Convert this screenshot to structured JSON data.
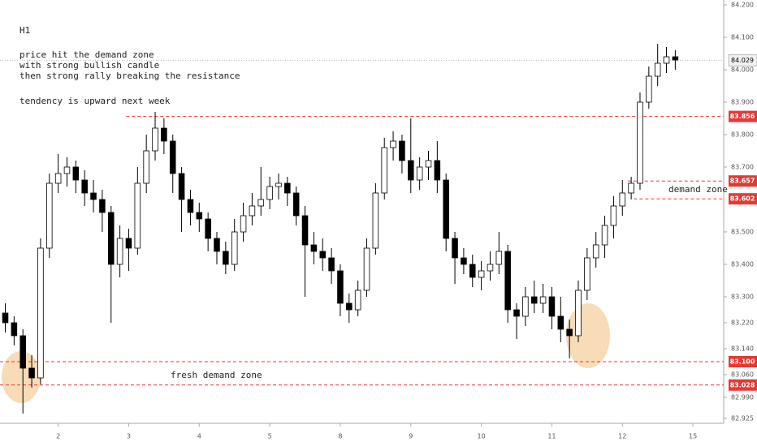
{
  "chart_data": {
    "type": "candlestick",
    "notes": [
      "H1",
      "price hit the demand zone",
      "with strong bullish candle",
      "then strong rally breaking the resistance",
      "tendency is upward next week"
    ],
    "zone_labels": [
      "fresh demand zone",
      "demand zone"
    ],
    "x": [
      -6,
      -5,
      -4,
      -3,
      -2,
      -1,
      0,
      1,
      2,
      3,
      4,
      5,
      6,
      7,
      8,
      9,
      10,
      11,
      12,
      13,
      14,
      15,
      16,
      17,
      18,
      19,
      20,
      21,
      22,
      23,
      24,
      25,
      26,
      27,
      28,
      29,
      30,
      31,
      32,
      33,
      34,
      35,
      36,
      37,
      38,
      39,
      40,
      41,
      42,
      43,
      44,
      45,
      46,
      47,
      48,
      49,
      50,
      51,
      52,
      53,
      54,
      55,
      56,
      57,
      58,
      59,
      60,
      61,
      62,
      63,
      64,
      65,
      66,
      67,
      68,
      69,
      70
    ],
    "open": [
      83.25,
      83.22,
      83.18,
      83.08,
      83.05,
      83.45,
      83.65,
      83.68,
      83.7,
      83.66,
      83.62,
      83.6,
      83.56,
      83.4,
      83.48,
      83.45,
      83.65,
      83.75,
      83.82,
      83.78,
      83.68,
      83.6,
      83.56,
      83.54,
      83.48,
      83.44,
      83.4,
      83.5,
      83.55,
      83.58,
      83.6,
      83.64,
      83.65,
      83.62,
      83.55,
      83.46,
      83.44,
      83.42,
      83.38,
      83.28,
      83.26,
      83.32,
      83.45,
      83.62,
      83.76,
      83.78,
      83.72,
      83.66,
      83.7,
      83.72,
      83.66,
      83.48,
      83.42,
      83.4,
      83.36,
      83.38,
      83.4,
      83.44,
      83.26,
      83.24,
      83.3,
      83.28,
      83.3,
      83.24,
      83.2,
      83.18,
      83.32,
      83.42,
      83.46,
      83.52,
      83.58,
      83.62,
      83.65,
      83.9,
      83.98,
      84.02,
      84.04
    ],
    "high": [
      83.28,
      83.24,
      83.2,
      83.12,
      83.48,
      83.68,
      83.74,
      83.73,
      83.72,
      83.69,
      83.66,
      83.63,
      83.58,
      83.52,
      83.51,
      83.7,
      83.8,
      83.87,
      83.85,
      83.8,
      83.7,
      83.63,
      83.59,
      83.56,
      83.5,
      83.47,
      83.54,
      83.59,
      83.62,
      83.7,
      83.67,
      83.68,
      83.67,
      83.64,
      83.58,
      83.5,
      83.48,
      83.45,
      83.4,
      83.31,
      83.35,
      83.48,
      83.65,
      83.79,
      83.81,
      83.8,
      83.85,
      83.73,
      83.75,
      83.78,
      83.68,
      83.5,
      83.45,
      83.43,
      83.41,
      83.44,
      83.5,
      83.46,
      83.28,
      83.33,
      83.35,
      83.34,
      83.33,
      83.3,
      83.23,
      83.35,
      83.45,
      83.5,
      83.55,
      83.61,
      83.66,
      83.67,
      83.93,
      84.01,
      84.08,
      84.07,
      84.06
    ],
    "low": [
      83.19,
      83.15,
      82.94,
      83.02,
      83.03,
      83.42,
      83.62,
      83.64,
      83.62,
      83.58,
      83.56,
      83.5,
      83.22,
      83.36,
      83.38,
      83.43,
      83.62,
      83.72,
      83.74,
      83.62,
      83.5,
      83.52,
      83.5,
      83.44,
      83.4,
      83.37,
      83.38,
      83.47,
      83.52,
      83.55,
      83.57,
      83.6,
      83.58,
      83.52,
      83.3,
      83.4,
      83.38,
      83.34,
      83.24,
      83.22,
      83.24,
      83.3,
      83.43,
      83.6,
      83.72,
      83.68,
      83.62,
      83.63,
      83.66,
      83.62,
      83.44,
      83.34,
      83.37,
      83.33,
      83.32,
      83.35,
      83.37,
      83.22,
      83.17,
      83.21,
      83.25,
      83.25,
      83.2,
      83.16,
      83.11,
      83.16,
      83.29,
      83.39,
      83.42,
      83.48,
      83.55,
      83.6,
      83.63,
      83.88,
      83.95,
      83.99,
      84.0
    ],
    "close": [
      83.22,
      83.18,
      83.08,
      83.05,
      83.45,
      83.65,
      83.68,
      83.7,
      83.66,
      83.62,
      83.6,
      83.56,
      83.4,
      83.48,
      83.45,
      83.65,
      83.75,
      83.82,
      83.78,
      83.68,
      83.6,
      83.56,
      83.54,
      83.48,
      83.44,
      83.4,
      83.5,
      83.55,
      83.58,
      83.6,
      83.64,
      83.65,
      83.62,
      83.55,
      83.46,
      83.44,
      83.42,
      83.38,
      83.28,
      83.26,
      83.32,
      83.45,
      83.62,
      83.76,
      83.78,
      83.72,
      83.66,
      83.7,
      83.72,
      83.66,
      83.48,
      83.42,
      83.4,
      83.36,
      83.38,
      83.4,
      83.44,
      83.26,
      83.24,
      83.3,
      83.28,
      83.3,
      83.24,
      83.2,
      83.18,
      83.32,
      83.42,
      83.46,
      83.52,
      83.58,
      83.62,
      83.65,
      83.9,
      83.98,
      84.02,
      84.04,
      84.03
    ],
    "up_color": "#ffffff",
    "down_color": "#000000",
    "xlim": [
      -6.6,
      75.4
    ],
    "xticks": [
      {
        "value": 0,
        "label": "2"
      },
      {
        "value": 8,
        "label": "3"
      },
      {
        "value": 16,
        "label": "4"
      },
      {
        "value": 24,
        "label": "5"
      },
      {
        "value": 32,
        "label": "8"
      },
      {
        "value": 40,
        "label": "9"
      },
      {
        "value": 48,
        "label": "10"
      },
      {
        "value": 56,
        "label": "11"
      },
      {
        "value": 64,
        "label": "12"
      },
      {
        "value": 72,
        "label": "15"
      }
    ],
    "ylim": [
      82.91,
      84.215
    ],
    "yticks": [
      {
        "value": 84.2,
        "label": "84.200"
      },
      {
        "value": 84.1,
        "label": "84.100"
      },
      {
        "value": 84.0,
        "label": "84.000"
      },
      {
        "value": 83.9,
        "label": "83.900"
      },
      {
        "value": 83.8,
        "label": "83.800"
      },
      {
        "value": 83.7,
        "label": "83.700"
      },
      {
        "value": 83.5,
        "label": "83.500"
      },
      {
        "value": 83.4,
        "label": "83.400"
      },
      {
        "value": 83.3,
        "label": "83.300"
      },
      {
        "value": 83.22,
        "label": "83.220"
      },
      {
        "value": 83.14,
        "label": "83.140"
      },
      {
        "value": 83.06,
        "label": "83.060"
      },
      {
        "value": 82.99,
        "label": "82.990"
      },
      {
        "value": 82.925,
        "label": "82.925"
      }
    ],
    "levels": [
      {
        "value": 83.856,
        "label": "83.856",
        "from": 7.7
      },
      {
        "value": 83.657,
        "label": "83.657",
        "from": 64.6
      },
      {
        "value": 83.602,
        "label": "83.602",
        "from": 65.3
      },
      {
        "value": 83.1,
        "label": "83.100",
        "from": -6.6
      },
      {
        "value": 83.028,
        "label": "83.028",
        "from": -6.6
      }
    ],
    "level_color": "#e53935",
    "last_price": {
      "value": 84.029,
      "label": "84.029"
    }
  }
}
